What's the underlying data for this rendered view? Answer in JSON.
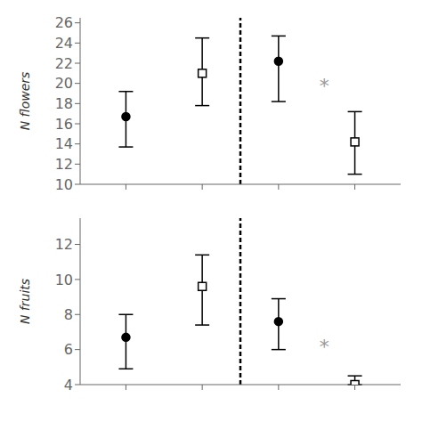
{
  "chart_data": [
    {
      "type": "scatter",
      "ylabel": "N flowers",
      "xlim": [
        0.4,
        4.6
      ],
      "xticks": [
        1,
        2,
        3,
        4
      ],
      "ylim": [
        10,
        26.5
      ],
      "yticks": [
        10,
        12,
        14,
        16,
        18,
        20,
        22,
        24,
        26
      ],
      "tick_labels": "y",
      "grid": false,
      "series": [
        {
          "marker": "circle_filled",
          "color": "#000000",
          "x": [
            1,
            3
          ],
          "values": [
            16.7,
            22.2
          ],
          "error_low": [
            3.0,
            4.0
          ],
          "error_high": [
            2.5,
            2.5
          ]
        },
        {
          "marker": "square_open",
          "color": "#000000",
          "x": [
            2,
            4
          ],
          "values": [
            21.0,
            14.2
          ],
          "error_low": [
            3.2,
            3.2
          ],
          "error_high": [
            3.5,
            3.0
          ]
        }
      ],
      "reference_lines": [
        {
          "x": 2.5,
          "color": "#000000",
          "line_style": "dashed"
        }
      ],
      "annotations": [
        {
          "text": "*",
          "x": 3.6,
          "y": 19.8,
          "color": "#999999"
        }
      ]
    },
    {
      "type": "scatter",
      "ylabel": "N fruits",
      "xlim": [
        0.4,
        4.6
      ],
      "xticks": [
        1,
        2,
        3,
        4
      ],
      "ylim": [
        4,
        13.5
      ],
      "yticks": [
        4,
        6,
        8,
        10,
        12
      ],
      "tick_labels": "y",
      "grid": false,
      "series": [
        {
          "marker": "circle_filled",
          "color": "#000000",
          "x": [
            1,
            3
          ],
          "values": [
            6.7,
            7.6
          ],
          "error_low": [
            1.8,
            1.6
          ],
          "error_high": [
            1.3,
            1.3
          ]
        },
        {
          "marker": "square_open",
          "color": "#000000",
          "x": [
            2,
            4
          ],
          "values": [
            9.6,
            4.0
          ],
          "error_low": [
            2.2,
            0.0
          ],
          "error_high": [
            1.8,
            0.5
          ]
        }
      ],
      "reference_lines": [
        {
          "x": 2.5,
          "color": "#000000",
          "line_style": "dashed"
        }
      ],
      "annotations": [
        {
          "text": "*",
          "x": 3.6,
          "y": 6.2,
          "color": "#999999"
        }
      ]
    }
  ]
}
